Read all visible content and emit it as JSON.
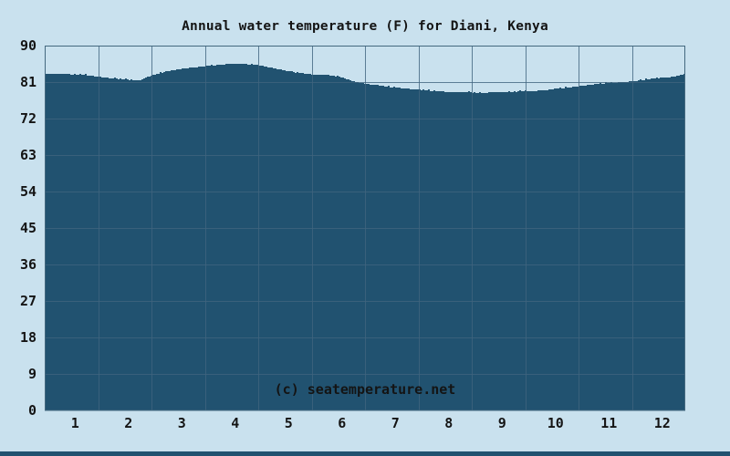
{
  "chart": {
    "title": "Annual water temperature (F) for Diani, Kenya",
    "watermark": "(c) seatemperature.net"
  },
  "chart_data": {
    "type": "area",
    "title": "Annual water temperature (F) for Diani, Kenya",
    "xlabel": "",
    "ylabel": "",
    "legend": false,
    "grid": true,
    "ylim": [
      0,
      90
    ],
    "xlim_months": [
      0,
      12
    ],
    "y_ticks": [
      0,
      9,
      18,
      27,
      36,
      45,
      54,
      63,
      72,
      81,
      90
    ],
    "x_tick_labels": [
      "1",
      "2",
      "3",
      "4",
      "5",
      "6",
      "7",
      "8",
      "9",
      "10",
      "11",
      "12"
    ],
    "categories": [
      "1",
      "2",
      "3",
      "4",
      "5",
      "6",
      "7",
      "8",
      "9",
      "10",
      "11",
      "12"
    ],
    "series": [
      {
        "name": "Water temperature (F)",
        "values": [
          82.9,
          81.7,
          84.2,
          85.5,
          83.8,
          82.3,
          79.7,
          78.6,
          78.5,
          79.2,
          80.7,
          82.0
        ]
      }
    ],
    "samples": {
      "description": "dense curve samples, step 0.25 month from Jan 1 to Dec 31",
      "step_months": 0.25,
      "values": [
        83.1,
        83.0,
        82.9,
        82.7,
        82.3,
        81.9,
        81.6,
        81.4,
        82.7,
        83.5,
        84.2,
        84.6,
        84.9,
        85.2,
        85.6,
        85.4,
        85.1,
        84.5,
        83.8,
        83.2,
        82.9,
        82.8,
        82.3,
        81.2,
        80.6,
        80.1,
        79.7,
        79.4,
        79.1,
        78.8,
        78.6,
        78.5,
        78.4,
        78.4,
        78.5,
        78.6,
        78.7,
        78.9,
        79.2,
        79.6,
        80.0,
        80.4,
        80.7,
        80.9,
        81.2,
        81.6,
        82.0,
        82.3,
        83.1
      ]
    }
  },
  "style": {
    "background": "#c9e1ee",
    "area_fill": "#215270",
    "gridline": "#40647e",
    "frame": "#44687f",
    "label_color": "#141414",
    "watermark_color": "#b7d5e4"
  }
}
